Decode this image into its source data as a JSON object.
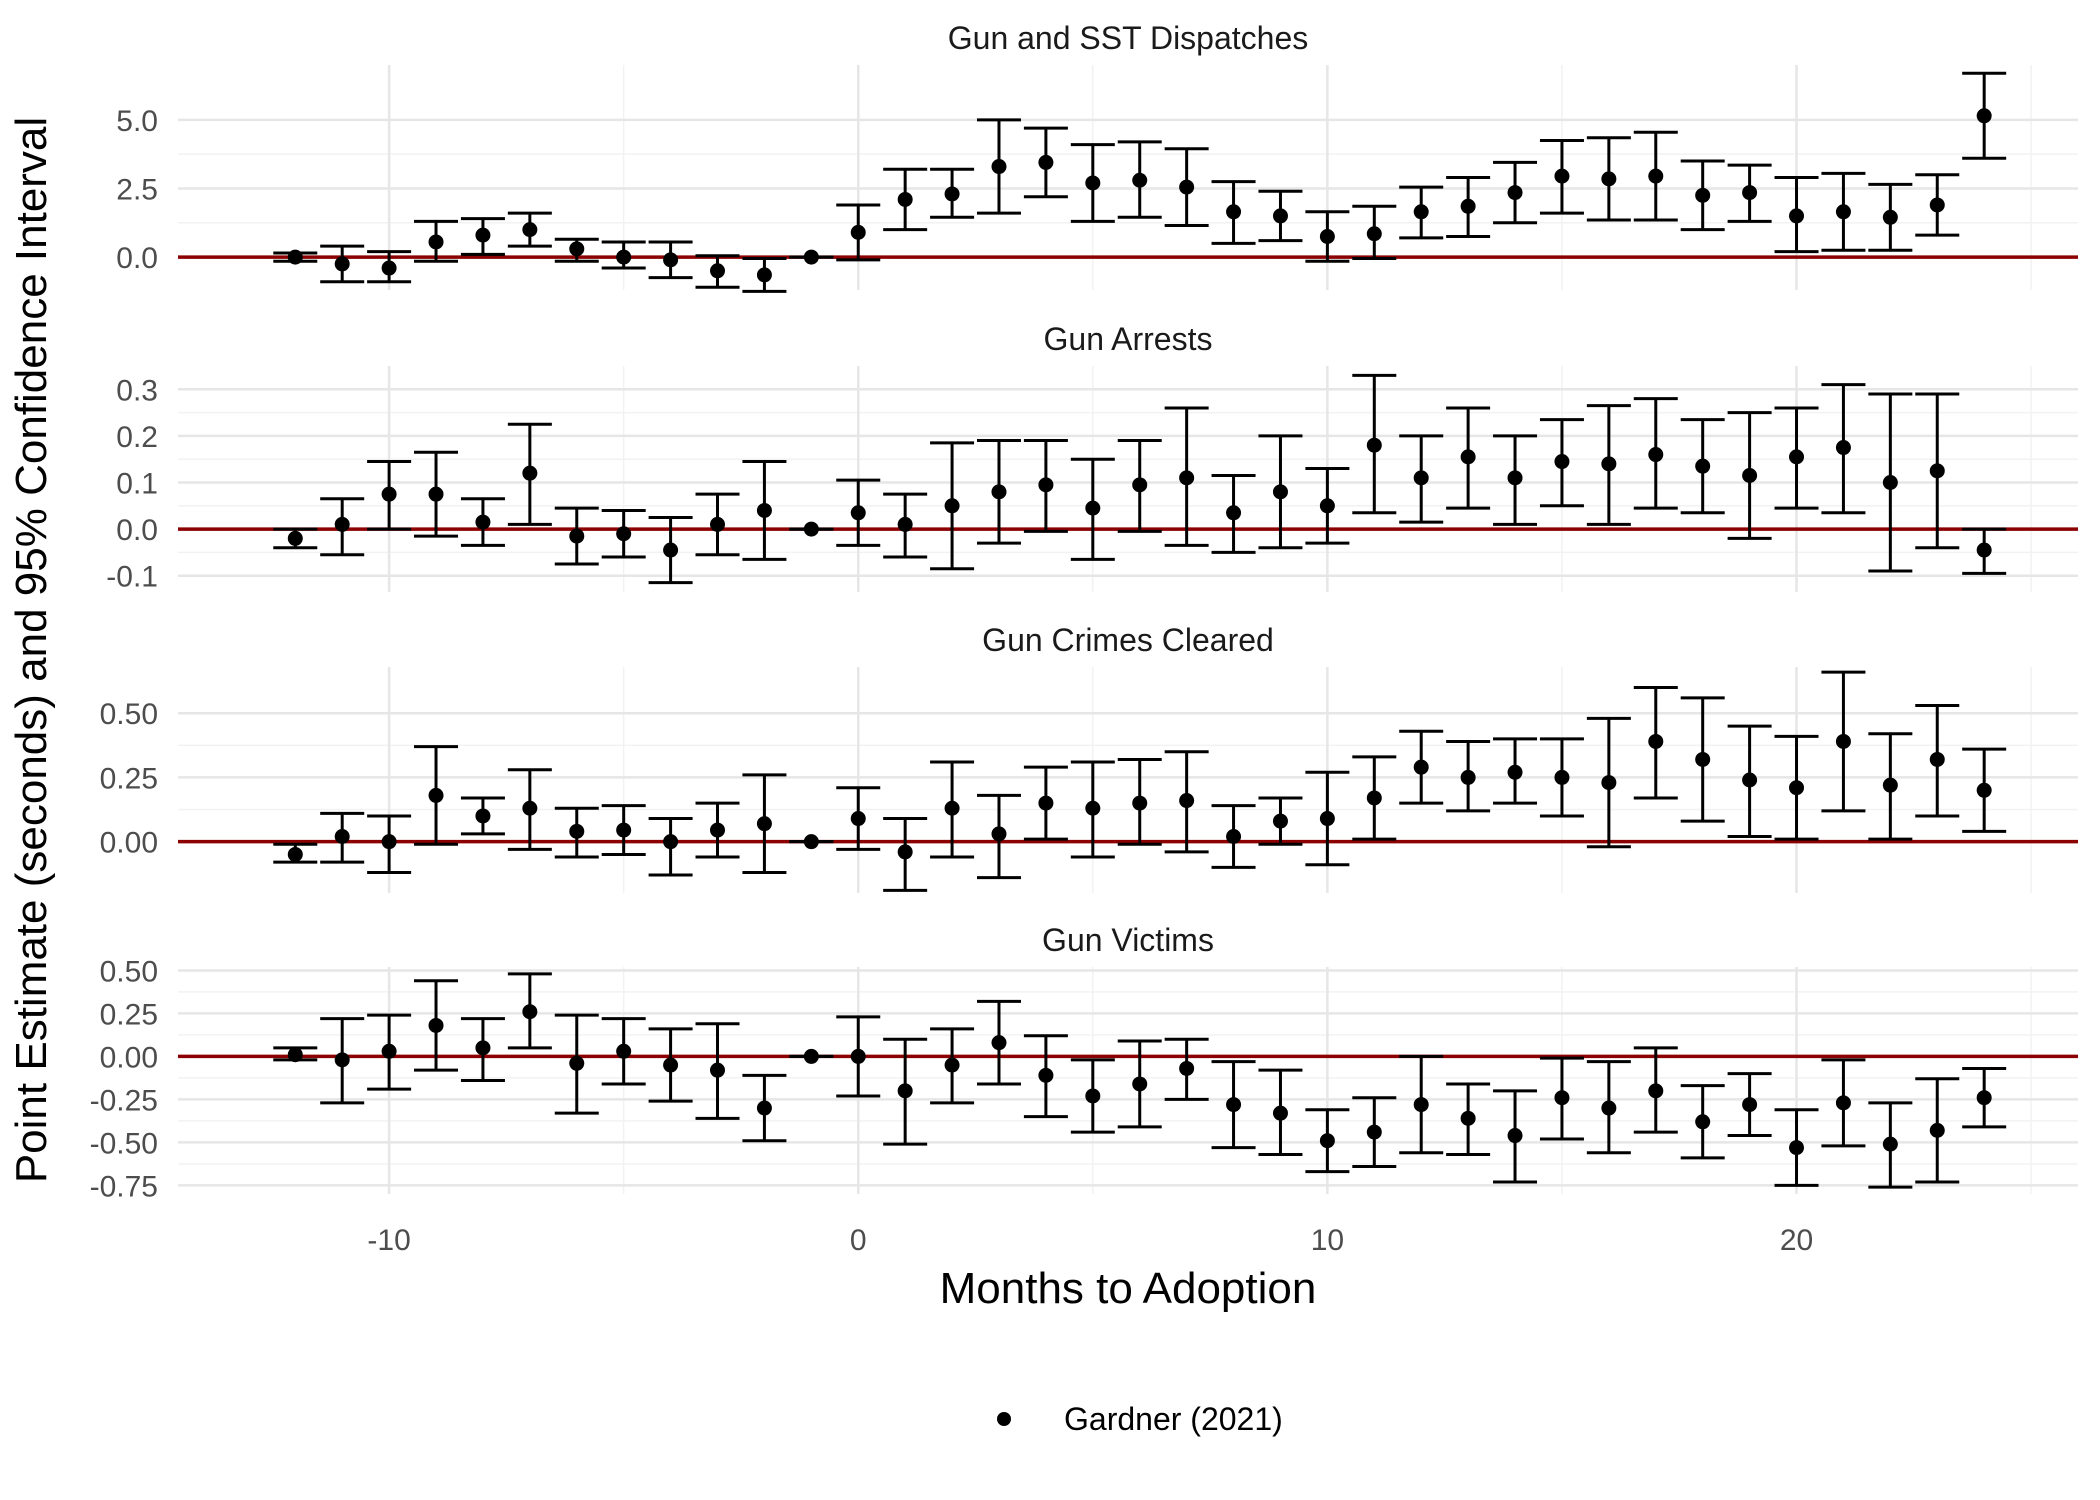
{
  "chart_data": {
    "type": "scatter",
    "subtype": "event-study point estimates with 95% confidence intervals, faceted",
    "xlabel": "Months to Adoption",
    "ylabel": "Point Estimate (seconds) and 95% Confidence Interval",
    "xlim": [
      -14.5,
      26
    ],
    "xticks": [
      -10,
      0,
      10,
      20
    ],
    "x": [
      -12,
      -11,
      -10,
      -9,
      -8,
      -7,
      -6,
      -5,
      -4,
      -3,
      -2,
      -1,
      0,
      1,
      2,
      3,
      4,
      5,
      6,
      7,
      8,
      9,
      10,
      11,
      12,
      13,
      14,
      15,
      16,
      17,
      18,
      19,
      20,
      21,
      22,
      23,
      24
    ],
    "reference_line": {
      "y": 0,
      "color": "#8b0000"
    },
    "legend": {
      "position": "bottom",
      "entries": [
        "Gardner (2021)"
      ]
    },
    "grid": true,
    "panels": [
      {
        "title": "Gun and SST Dispatches",
        "ylim": [
          -1.2,
          7.0
        ],
        "yticks": [
          0.0,
          2.5,
          5.0
        ],
        "ytick_labels": [
          "0.0",
          "2.5",
          "5.0"
        ],
        "series": [
          {
            "name": "Gardner (2021)",
            "estimate": [
              0.0,
              -0.25,
              -0.4,
              0.55,
              0.8,
              1.0,
              0.3,
              0.0,
              -0.1,
              -0.5,
              -0.65,
              0.0,
              0.9,
              2.1,
              2.3,
              3.3,
              3.45,
              2.7,
              2.8,
              2.55,
              1.65,
              1.5,
              0.75,
              0.85,
              1.65,
              1.85,
              2.35,
              2.95,
              2.85,
              2.95,
              2.25,
              2.35,
              1.5,
              1.65,
              1.45,
              1.9,
              5.15
            ],
            "lower": [
              -0.15,
              -0.9,
              -0.9,
              -0.15,
              0.1,
              0.4,
              -0.15,
              -0.4,
              -0.75,
              -1.1,
              -1.25,
              0.0,
              -0.1,
              1.0,
              1.45,
              1.6,
              2.2,
              1.3,
              1.45,
              1.15,
              0.5,
              0.6,
              -0.15,
              -0.05,
              0.7,
              0.75,
              1.25,
              1.6,
              1.35,
              1.35,
              1.0,
              1.3,
              0.2,
              0.25,
              0.25,
              0.8,
              3.6
            ],
            "upper": [
              0.15,
              0.4,
              0.2,
              1.3,
              1.4,
              1.6,
              0.65,
              0.55,
              0.55,
              0.05,
              -0.05,
              0.0,
              1.9,
              3.2,
              3.2,
              5.0,
              4.7,
              4.1,
              4.2,
              3.95,
              2.75,
              2.4,
              1.65,
              1.85,
              2.55,
              2.9,
              3.45,
              4.25,
              4.35,
              4.55,
              3.5,
              3.35,
              2.9,
              3.05,
              2.65,
              3.0,
              6.7
            ]
          }
        ]
      },
      {
        "title": "Gun Arrests",
        "ylim": [
          -0.135,
          0.35
        ],
        "yticks": [
          -0.1,
          0.0,
          0.1,
          0.2,
          0.3
        ],
        "ytick_labels": [
          "-0.1",
          "0.0",
          "0.1",
          "0.2",
          "0.3"
        ],
        "series": [
          {
            "name": "Gardner (2021)",
            "estimate": [
              -0.02,
              0.01,
              0.075,
              0.075,
              0.015,
              0.12,
              -0.015,
              -0.01,
              -0.045,
              0.01,
              0.04,
              0.0,
              0.035,
              0.01,
              0.05,
              0.08,
              0.095,
              0.045,
              0.095,
              0.11,
              0.035,
              0.08,
              0.05,
              0.18,
              0.11,
              0.155,
              0.11,
              0.145,
              0.14,
              0.16,
              0.135,
              0.115,
              0.155,
              0.175,
              0.1,
              0.125,
              -0.045
            ],
            "lower": [
              -0.04,
              -0.055,
              0.0,
              -0.015,
              -0.035,
              0.01,
              -0.075,
              -0.06,
              -0.115,
              -0.055,
              -0.065,
              0.0,
              -0.035,
              -0.06,
              -0.085,
              -0.03,
              -0.005,
              -0.065,
              -0.005,
              -0.035,
              -0.05,
              -0.04,
              -0.03,
              0.035,
              0.015,
              0.045,
              0.01,
              0.05,
              0.01,
              0.045,
              0.035,
              -0.02,
              0.045,
              0.035,
              -0.09,
              -0.04,
              -0.095
            ],
            "upper": [
              0.0,
              0.065,
              0.145,
              0.165,
              0.065,
              0.225,
              0.045,
              0.04,
              0.025,
              0.075,
              0.145,
              0.0,
              0.105,
              0.075,
              0.185,
              0.19,
              0.19,
              0.15,
              0.19,
              0.26,
              0.115,
              0.2,
              0.13,
              0.33,
              0.2,
              0.26,
              0.2,
              0.235,
              0.265,
              0.28,
              0.235,
              0.25,
              0.26,
              0.31,
              0.29,
              0.29,
              0.0
            ]
          }
        ]
      },
      {
        "title": "Gun Crimes Cleared",
        "ylim": [
          -0.2,
          0.68
        ],
        "yticks": [
          0.0,
          0.25,
          0.5
        ],
        "ytick_labels": [
          "0.00",
          "0.25",
          "0.50"
        ],
        "series": [
          {
            "name": "Gardner (2021)",
            "estimate": [
              -0.05,
              0.02,
              0.0,
              0.18,
              0.1,
              0.13,
              0.04,
              0.045,
              0.0,
              0.045,
              0.07,
              0.0,
              0.09,
              -0.04,
              0.13,
              0.03,
              0.15,
              0.13,
              0.15,
              0.16,
              0.02,
              0.08,
              0.09,
              0.17,
              0.29,
              0.25,
              0.27,
              0.25,
              0.23,
              0.39,
              0.32,
              0.24,
              0.21,
              0.39,
              0.22,
              0.32,
              0.2
            ],
            "lower": [
              -0.08,
              -0.08,
              -0.12,
              -0.01,
              0.03,
              -0.03,
              -0.06,
              -0.05,
              -0.13,
              -0.06,
              -0.12,
              0.0,
              -0.03,
              -0.19,
              -0.06,
              -0.14,
              0.01,
              -0.06,
              -0.01,
              -0.04,
              -0.1,
              -0.01,
              -0.09,
              0.01,
              0.15,
              0.12,
              0.15,
              0.1,
              -0.02,
              0.17,
              0.08,
              0.02,
              0.01,
              0.12,
              0.01,
              0.1,
              0.04
            ],
            "upper": [
              -0.01,
              0.11,
              0.1,
              0.37,
              0.17,
              0.28,
              0.13,
              0.14,
              0.09,
              0.15,
              0.26,
              0.0,
              0.21,
              0.09,
              0.31,
              0.18,
              0.29,
              0.31,
              0.32,
              0.35,
              0.14,
              0.17,
              0.27,
              0.33,
              0.43,
              0.39,
              0.4,
              0.4,
              0.48,
              0.6,
              0.56,
              0.45,
              0.41,
              0.66,
              0.42,
              0.53,
              0.36
            ]
          }
        ]
      },
      {
        "title": "Gun Victims",
        "ylim": [
          -0.8,
          0.52
        ],
        "yticks": [
          -0.75,
          -0.5,
          -0.25,
          0.0,
          0.25,
          0.5
        ],
        "ytick_labels": [
          "-0.75",
          "-0.50",
          "-0.25",
          "0.00",
          "0.25",
          "0.50"
        ],
        "series": [
          {
            "name": "Gardner (2021)",
            "estimate": [
              0.01,
              -0.02,
              0.03,
              0.18,
              0.05,
              0.26,
              -0.04,
              0.03,
              -0.05,
              -0.08,
              -0.3,
              0.0,
              0.0,
              -0.2,
              -0.05,
              0.08,
              -0.11,
              -0.23,
              -0.16,
              -0.07,
              -0.28,
              -0.33,
              -0.49,
              -0.44,
              -0.28,
              -0.36,
              -0.46,
              -0.24,
              -0.3,
              -0.2,
              -0.38,
              -0.28,
              -0.53,
              -0.27,
              -0.51,
              -0.43,
              -0.24
            ],
            "lower": [
              -0.02,
              -0.27,
              -0.19,
              -0.08,
              -0.14,
              0.05,
              -0.33,
              -0.16,
              -0.26,
              -0.36,
              -0.49,
              0.0,
              -0.23,
              -0.51,
              -0.27,
              -0.16,
              -0.35,
              -0.44,
              -0.41,
              -0.25,
              -0.53,
              -0.57,
              -0.67,
              -0.64,
              -0.56,
              -0.57,
              -0.73,
              -0.48,
              -0.56,
              -0.44,
              -0.59,
              -0.46,
              -0.75,
              -0.52,
              -0.76,
              -0.73,
              -0.41
            ],
            "upper": [
              0.05,
              0.22,
              0.24,
              0.44,
              0.22,
              0.48,
              0.24,
              0.22,
              0.16,
              0.19,
              -0.11,
              0.0,
              0.23,
              0.1,
              0.16,
              0.32,
              0.12,
              -0.02,
              0.09,
              0.1,
              -0.03,
              -0.08,
              -0.31,
              -0.24,
              0.0,
              -0.16,
              -0.2,
              -0.01,
              -0.03,
              0.05,
              -0.17,
              -0.1,
              -0.31,
              -0.02,
              -0.27,
              -0.13,
              -0.07
            ]
          }
        ]
      }
    ]
  }
}
